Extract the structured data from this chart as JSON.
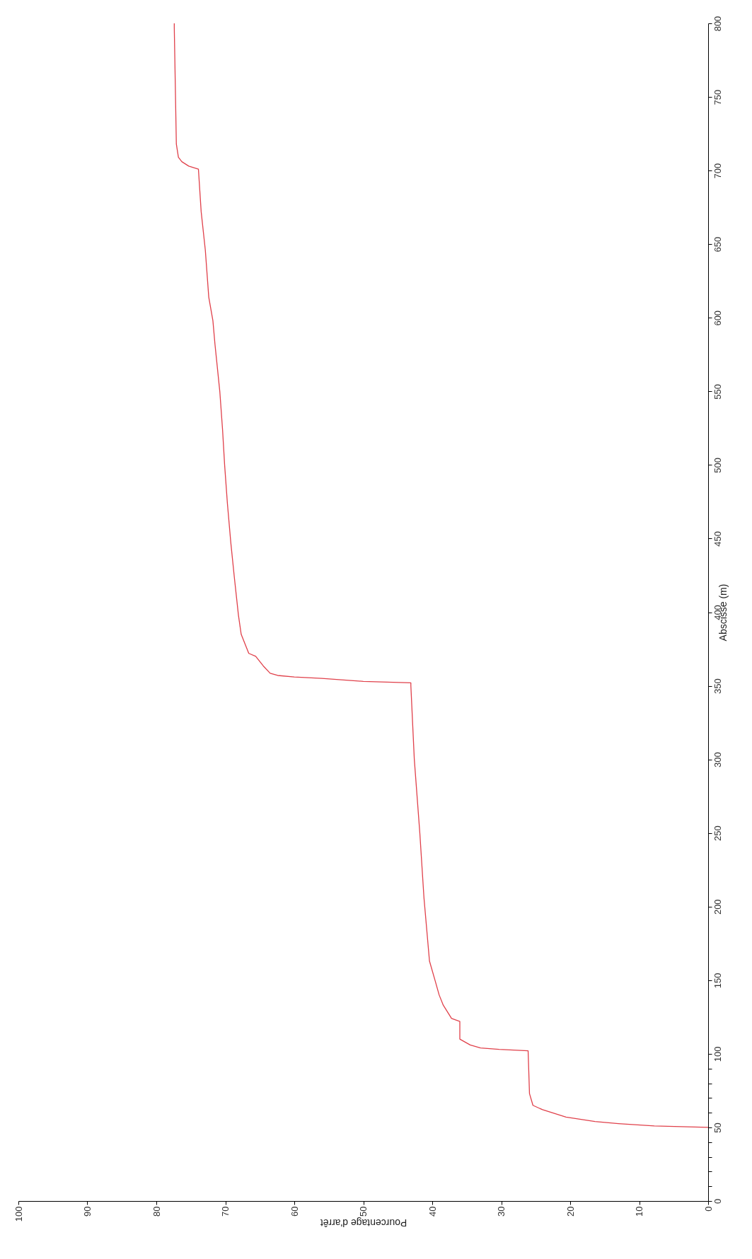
{
  "chart_data": {
    "type": "line",
    "xlabel": "Pourcentage d'arrêt",
    "ylabel": "Abscisse (m)",
    "xlim": [
      100,
      0
    ],
    "ylim": [
      0,
      800
    ],
    "xticks": [
      100,
      90,
      80,
      70,
      60,
      50,
      40,
      30,
      20,
      10,
      0
    ],
    "yticks": [
      0,
      {
        "value": 10,
        "label": null
      },
      {
        "value": 20,
        "label": null
      },
      {
        "value": 30,
        "label": null
      },
      {
        "value": 40,
        "label": null
      },
      50,
      {
        "value": 60,
        "label": null
      },
      {
        "value": 70,
        "label": null
      },
      {
        "value": 80,
        "label": null
      },
      {
        "value": 90,
        "label": null
      },
      100,
      150,
      200,
      250,
      300,
      350,
      400,
      450,
      500,
      550,
      600,
      650,
      700,
      750,
      800
    ],
    "grid": false,
    "marker": "none",
    "line_style": "solid",
    "series": [
      {
        "color": "#e0404a",
        "x": [
          0,
          7.8,
          13,
          16.4,
          20.6,
          24,
          25.4,
          25.9,
          26.1,
          30.3,
          33,
          34.5,
          36,
          36,
          37.2,
          38.4,
          39,
          39.6,
          40.4,
          41.2,
          41.8,
          42.6,
          43.1,
          43.1,
          50,
          56,
          60,
          62.4,
          63.5,
          64.5,
          65.6,
          66.6,
          67.7,
          68.1,
          68.7,
          69.2,
          69.7,
          70.1,
          70.4,
          70.8,
          71.5,
          71.8,
          72.4,
          72.9,
          73.5,
          73.9,
          75.3,
          76.3,
          76.8,
          77.1,
          77.4,
          77.4
        ],
        "values": [
          50,
          51,
          52.6,
          54,
          57,
          62,
          65,
          73,
          102,
          103,
          104,
          106,
          110,
          122,
          124,
          133,
          140,
          150,
          163,
          206,
          250,
          300,
          350,
          352,
          353,
          355,
          356,
          357,
          358.5,
          363.5,
          370,
          372,
          385,
          398,
          424,
          447,
          474,
          500,
          524,
          550,
          582,
          598,
          614,
          646,
          672,
          701,
          703,
          706,
          709,
          718,
          797,
          800
        ]
      }
    ]
  }
}
